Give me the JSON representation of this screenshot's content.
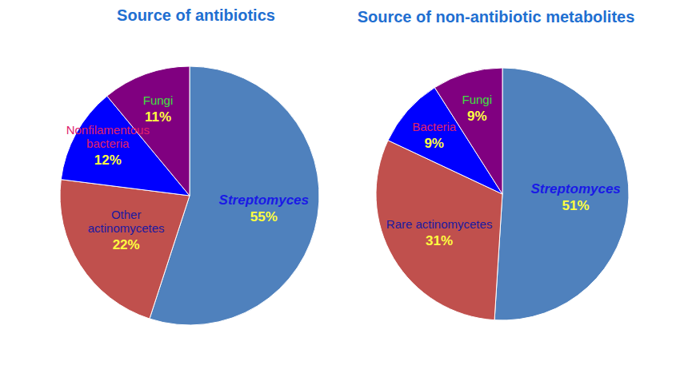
{
  "chart_data": [
    {
      "type": "pie",
      "title": "Source of antibiotics",
      "categories": [
        "Streptomyces",
        "Other actinomycetes",
        "Nonfilamentous bacteria",
        "Fungi"
      ],
      "values": [
        55,
        22,
        12,
        11
      ],
      "value_labels": [
        "55%",
        "22%",
        "12%",
        "11%"
      ],
      "colors": [
        "#4f81bd",
        "#c0504d",
        "#0000ff",
        "#800080"
      ],
      "data_labels": true
    },
    {
      "type": "pie",
      "title": "Source of non-antibiotic metabolites",
      "categories": [
        "Streptomyces",
        "Rare actinomycetes",
        "Bacteria",
        "Fungi"
      ],
      "values": [
        51,
        31,
        9,
        9
      ],
      "value_labels": [
        "51%",
        "31%",
        "9%",
        "9%"
      ],
      "colors": [
        "#4f81bd",
        "#c0504d",
        "#0000ff",
        "#800080"
      ],
      "data_labels": true
    }
  ]
}
